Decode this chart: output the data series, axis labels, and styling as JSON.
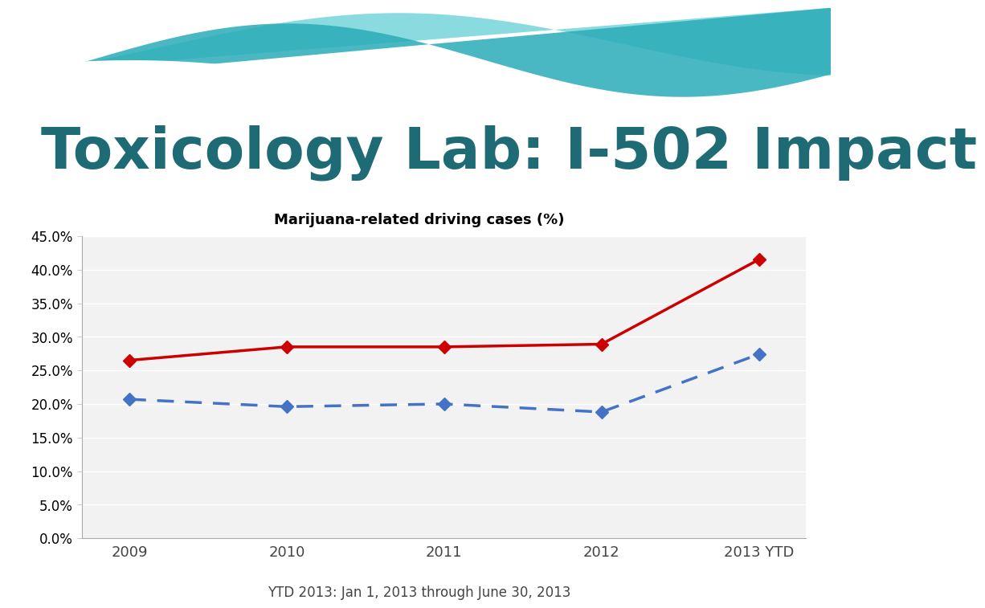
{
  "title": "Toxicology Lab: I-502 Impact",
  "subtitle": "Marijuana-related driving cases (%)",
  "footnote": "YTD 2013: Jan 1, 2013 through June 30, 2013",
  "x_labels": [
    "2009",
    "2010",
    "2011",
    "2012",
    "2013 YTD"
  ],
  "red_series": [
    0.265,
    0.285,
    0.285,
    0.289,
    0.415
  ],
  "blue_series": [
    0.207,
    0.196,
    0.2,
    0.188,
    0.274
  ],
  "ylim": [
    0.0,
    0.45
  ],
  "yticks": [
    0.0,
    0.05,
    0.1,
    0.15,
    0.2,
    0.25,
    0.3,
    0.35,
    0.4,
    0.45
  ],
  "red_color": "#CC0000",
  "blue_color": "#4472C4",
  "title_color": "#1F6B75",
  "subtitle_color": "#000000",
  "background_color": "#FFFFFF",
  "plot_bg_color": "#F2F2F2",
  "grid_color": "#FFFFFF",
  "title_fontsize": 52,
  "subtitle_fontsize": 13,
  "footnote_fontsize": 12,
  "wave_color_light": "#7DD8DC",
  "wave_color_dark": "#2AACB8",
  "wave_color_mid": "#5BC8D0"
}
